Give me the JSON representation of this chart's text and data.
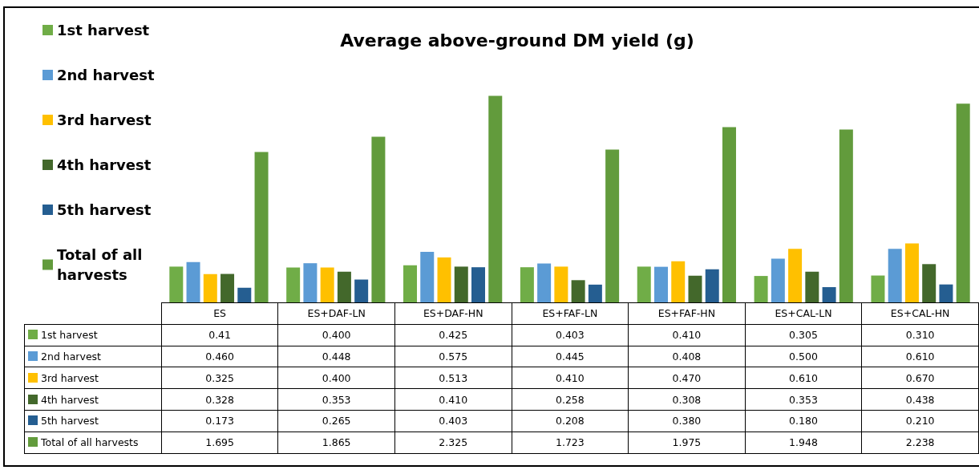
{
  "chart_data": {
    "type": "bar",
    "title": "Average above-ground DM yield (g)",
    "categories": [
      "ES",
      "ES+DAF-LN",
      "ES+DAF-HN",
      "ES+FAF-LN",
      "ES+FAF-HN",
      "ES+CAL-LN",
      "ES+CAL-HN"
    ],
    "legend": "left",
    "data_labels": true,
    "series": [
      {
        "name": "1st harvest",
        "color": "#70ad47",
        "values": [
          0.41,
          0.4,
          0.425,
          0.403,
          0.41,
          0.305,
          0.31
        ],
        "value_labels": [
          "0.41",
          "0.400",
          "0.425",
          "0.403",
          "0.410",
          "0.305",
          "0.310"
        ]
      },
      {
        "name": "2nd harvest",
        "color": "#5b9bd5",
        "values": [
          0.46,
          0.448,
          0.575,
          0.445,
          0.408,
          0.5,
          0.61
        ],
        "value_labels": [
          "0.460",
          "0.448",
          "0.575",
          "0.445",
          "0.408",
          "0.500",
          "0.610"
        ]
      },
      {
        "name": "3rd harvest",
        "color": "#ffc000",
        "values": [
          0.325,
          0.4,
          0.513,
          0.41,
          0.47,
          0.61,
          0.67
        ],
        "value_labels": [
          "0.325",
          "0.400",
          "0.513",
          "0.410",
          "0.470",
          "0.610",
          "0.670"
        ]
      },
      {
        "name": "4th harvest",
        "color": "#43682b",
        "values": [
          0.328,
          0.353,
          0.41,
          0.258,
          0.308,
          0.353,
          0.438
        ],
        "value_labels": [
          "0.328",
          "0.353",
          "0.410",
          "0.258",
          "0.308",
          "0.353",
          "0.438"
        ]
      },
      {
        "name": "5th harvest",
        "color": "#255e91",
        "values": [
          0.173,
          0.265,
          0.403,
          0.208,
          0.38,
          0.18,
          0.21
        ],
        "value_labels": [
          "0.173",
          "0.265",
          "0.403",
          "0.208",
          "0.380",
          "0.180",
          "0.210"
        ]
      },
      {
        "name": "Total of all harvests",
        "color": "#629b3c",
        "values": [
          1.695,
          1.865,
          2.325,
          1.723,
          1.975,
          1.948,
          2.238
        ],
        "value_labels": [
          "1.695",
          "1.865",
          "2.325",
          "1.723",
          "1.975",
          "1.948",
          "2.238"
        ]
      }
    ]
  }
}
